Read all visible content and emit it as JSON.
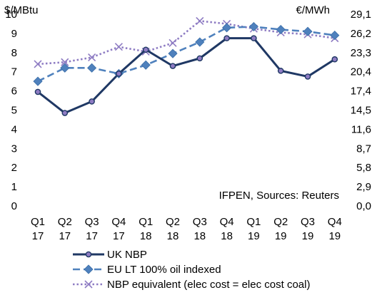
{
  "chart_data": {
    "type": "line",
    "title": "",
    "left_axis_unit": "$/MBtu",
    "right_axis_unit": "€/MWh",
    "annotation": "IFPEN, Sources: Reuters",
    "categories": [
      [
        "Q1",
        "17"
      ],
      [
        "Q2",
        "17"
      ],
      [
        "Q3",
        "17"
      ],
      [
        "Q4",
        "17"
      ],
      [
        "Q1",
        "18"
      ],
      [
        "Q2",
        "18"
      ],
      [
        "Q3",
        "18"
      ],
      [
        "Q4",
        "18"
      ],
      [
        "Q1",
        "19"
      ],
      [
        "Q2",
        "19"
      ],
      [
        "Q3",
        "19"
      ],
      [
        "Q4",
        "19"
      ]
    ],
    "ylim": [
      0,
      10
    ],
    "yticks": [
      "0",
      "1",
      "2",
      "3",
      "4",
      "5",
      "6",
      "7",
      "8",
      "9",
      "10"
    ],
    "y2ticks": [
      "0,0",
      "2,9",
      "5,8",
      "8,7",
      "11,6",
      "14,5",
      "17,4",
      "20,4",
      "23,3",
      "26,2",
      "29,1"
    ],
    "grid": false,
    "legend_position": "bottom",
    "series": [
      {
        "name": "UK NBP",
        "color": "#1F3864",
        "marker_color": "#8E7CC3",
        "style": "solid",
        "marker": "circle",
        "values": [
          5.95,
          4.85,
          5.45,
          6.9,
          8.15,
          7.3,
          7.7,
          8.75,
          8.75,
          7.05,
          6.75,
          7.65
        ]
      },
      {
        "name": "EU LT 100% oil indexed",
        "color": "#4F81BD",
        "style": "dashed",
        "marker": "diamond",
        "values": [
          6.5,
          7.2,
          7.2,
          6.9,
          7.35,
          7.95,
          8.55,
          9.3,
          9.35,
          9.2,
          9.1,
          8.9
        ]
      },
      {
        "name": "NBP equivalent (elec cost = elec cost coal)",
        "color": "#8E7CC3",
        "style": "dotted",
        "marker": "x",
        "values": [
          7.4,
          7.5,
          7.75,
          8.3,
          8.05,
          8.5,
          9.65,
          9.5,
          9.25,
          9.05,
          8.95,
          8.75
        ]
      }
    ]
  }
}
